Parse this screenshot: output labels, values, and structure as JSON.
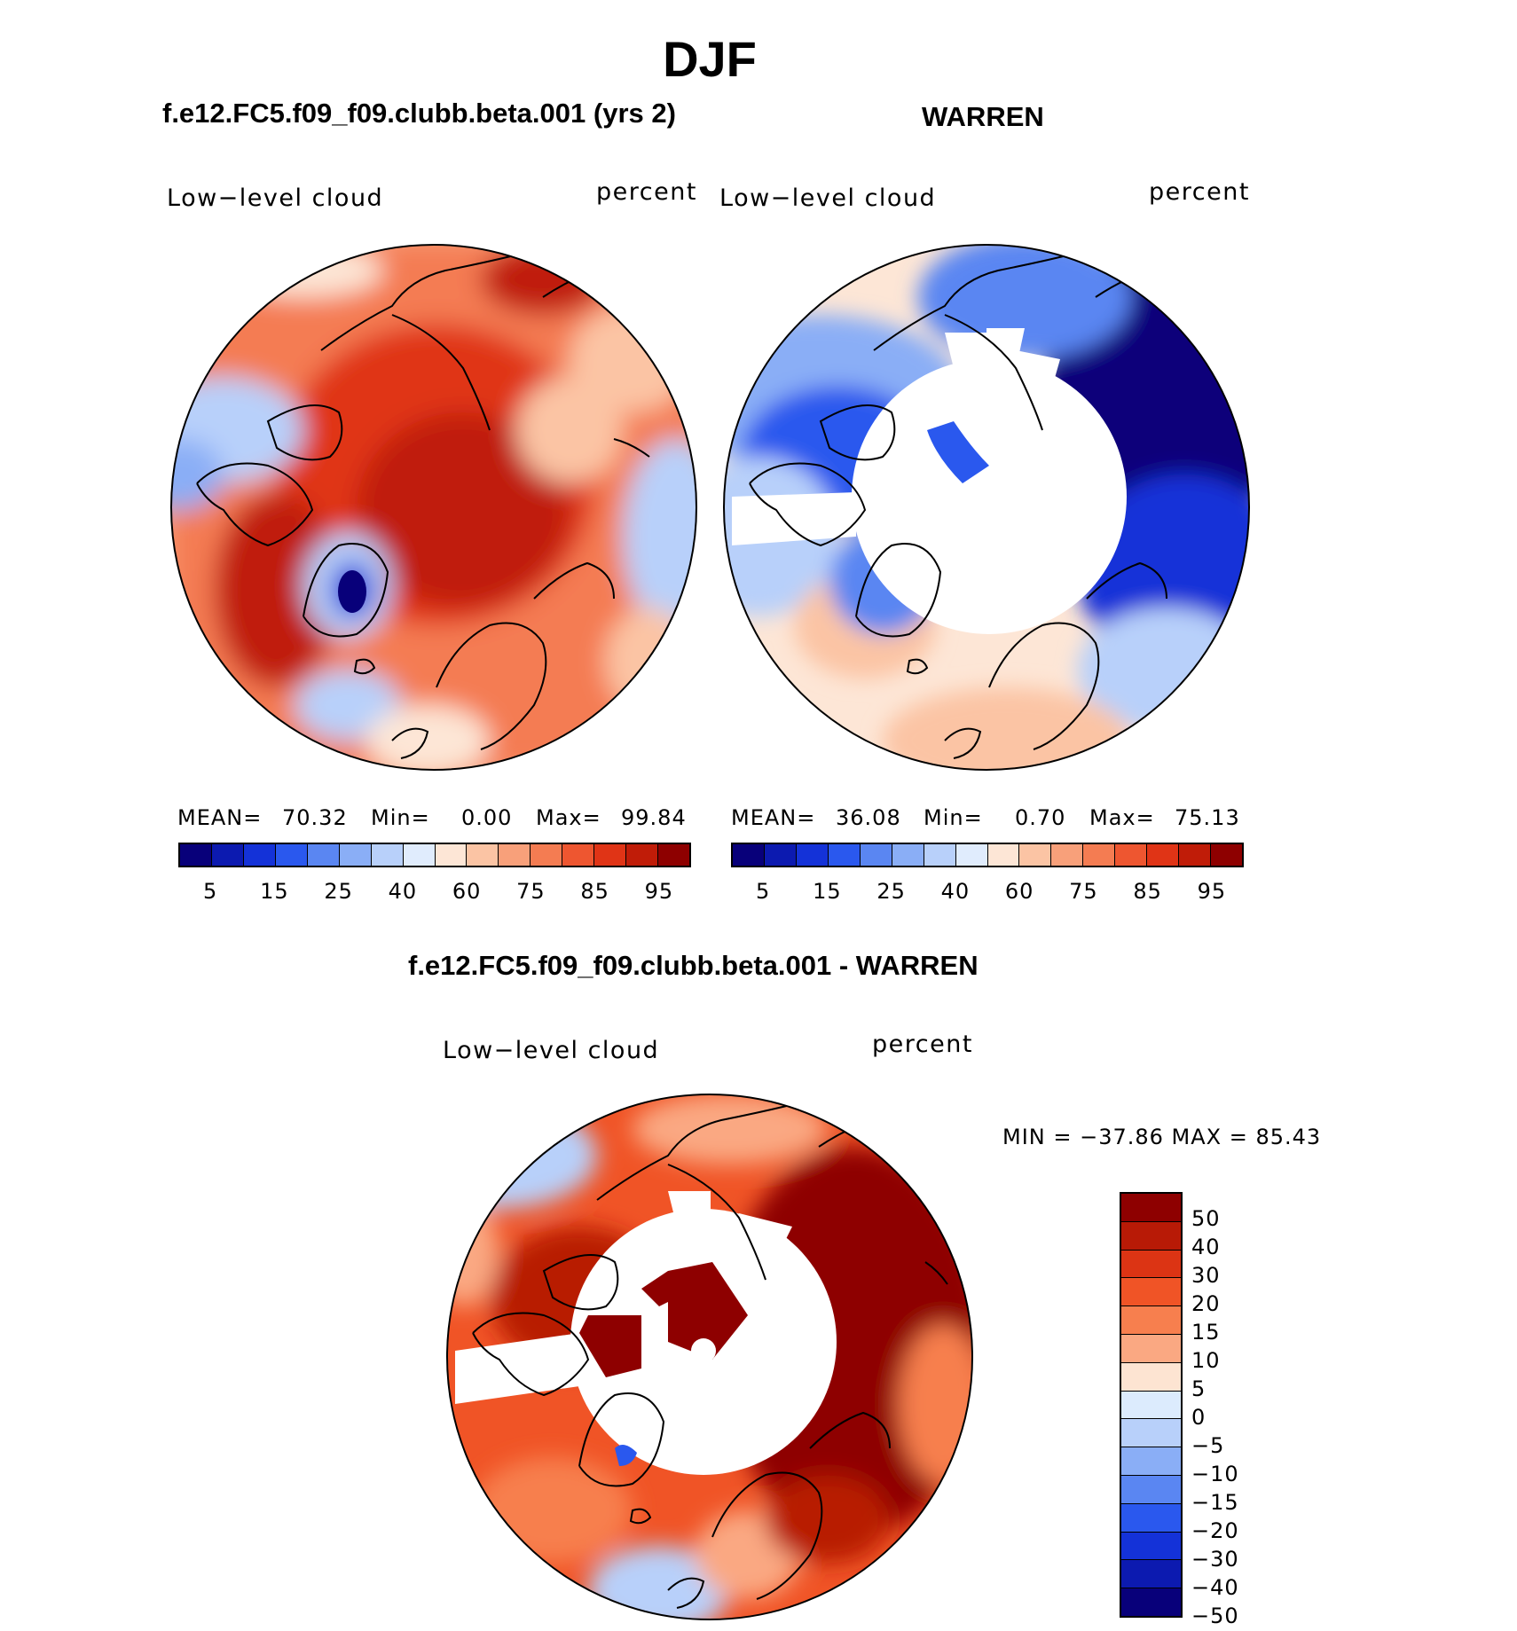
{
  "title": "DJF",
  "panels": [
    {
      "id": "model",
      "title": "f.e12.FC5.f09_f09.clubb.beta.001 (yrs 2)",
      "variable": "Low−level cloud",
      "units": "percent",
      "stats": {
        "mean_label": "MEAN=",
        "mean": "70.32",
        "min_label": "Min=",
        "min": "0.00",
        "max_label": "Max=",
        "max": "99.84"
      }
    },
    {
      "id": "obs",
      "title": "WARREN",
      "variable": "Low−level cloud",
      "units": "percent",
      "stats": {
        "mean_label": "MEAN=",
        "mean": "36.08",
        "min_label": "Min=",
        "min": "0.70",
        "max_label": "Max=",
        "max": "75.13"
      }
    }
  ],
  "abs_colorbar": {
    "colors": [
      "#08007a",
      "#0c1ab0",
      "#1432d8",
      "#2a58ee",
      "#5a86f2",
      "#8aaef6",
      "#b8d0fa",
      "#e0ecfd",
      "#fde6d6",
      "#fbc4a4",
      "#f8a07a",
      "#f47c52",
      "#ee5630",
      "#e03416",
      "#c01c08",
      "#8e0000"
    ],
    "tick_labels": [
      "5",
      "15",
      "25",
      "40",
      "60",
      "75",
      "85",
      "95"
    ]
  },
  "diff_panel": {
    "title": "f.e12.FC5.f09_f09.clubb.beta.001 - WARREN",
    "variable": "Low−level cloud",
    "units": "percent",
    "minmax_text": "MIN = −37.86 MAX =   85.43",
    "colorbar": {
      "colors_top_to_bottom": [
        "#8e0000",
        "#b81a06",
        "#dc3414",
        "#f05426",
        "#f77f4e",
        "#faa882",
        "#fde4d2",
        "#dcebfd",
        "#b8d0fa",
        "#8aaef6",
        "#5a86f2",
        "#2a58ee",
        "#1432d8",
        "#0c1ab0",
        "#08007a"
      ],
      "tick_labels": [
        "50",
        "40",
        "30",
        "20",
        "15",
        "10",
        "5",
        "0",
        "−5",
        "−10",
        "−15",
        "−20",
        "−30",
        "−40",
        "−50"
      ]
    }
  }
}
